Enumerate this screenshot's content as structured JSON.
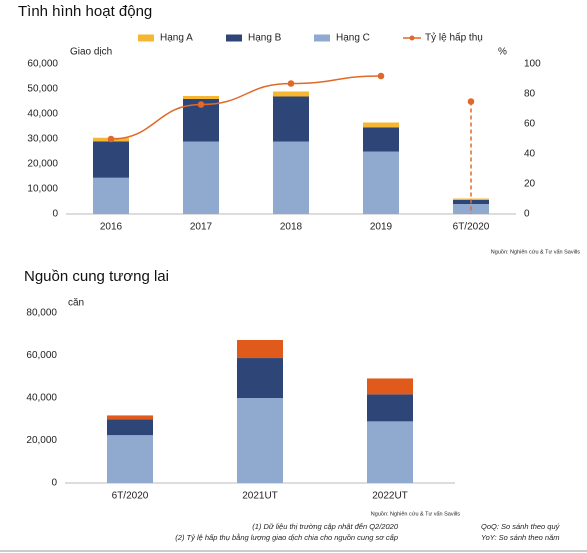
{
  "chart_data": [
    {
      "type": "bar",
      "stacked": true,
      "title": "Tình hình hoạt động",
      "ylabel": "Giao dịch",
      "y2label": "%",
      "categories": [
        "2016",
        "2017",
        "2018",
        "2019",
        "6T/2020"
      ],
      "series": [
        {
          "name": "Hạng A",
          "color": "#f5b731",
          "values": [
            1500,
            1200,
            2000,
            2000,
            600
          ]
        },
        {
          "name": "Hạng B",
          "color": "#2e4677",
          "values": [
            14500,
            17000,
            18000,
            9600,
            1600
          ]
        },
        {
          "name": "Hạng C",
          "color": "#8fa9cf",
          "values": [
            14500,
            29000,
            29000,
            25000,
            4000
          ]
        },
        {
          "name": "Tỷ lệ hấp thụ",
          "type": "line",
          "axis": "y2",
          "color": "#e0692a",
          "values": [
            50,
            73,
            87,
            92,
            75
          ],
          "isolated_last_point": true
        }
      ],
      "ylim": [
        0,
        60000
      ],
      "yticks": [
        0,
        {
          "value": 10000,
          "label": "10,000"
        },
        {
          "value": 20000,
          "label": "20,000"
        },
        {
          "value": 30000,
          "label": "30,000"
        },
        {
          "value": 40000,
          "label": "40,000"
        },
        {
          "value": 50000,
          "label": "50,000"
        },
        {
          "value": 60000,
          "label": "60,000"
        }
      ],
      "y2lim": [
        0,
        100
      ],
      "y2ticks": [
        0,
        20,
        40,
        60,
        80,
        100
      ],
      "grid": false,
      "legend": "top",
      "source": "Nguồn: Nghiên cứu & Tư vấn Savills"
    },
    {
      "type": "bar",
      "stacked": true,
      "title": "Nguồn cung tương lai",
      "ylabel": "căn",
      "categories": [
        "6T/2020",
        "2021UT",
        "2022UT"
      ],
      "series": [
        {
          "color": "#8fa9cf",
          "values": [
            22500,
            40000,
            29000
          ]
        },
        {
          "color": "#2e4677",
          "values": [
            7500,
            18800,
            12700
          ]
        },
        {
          "color": "#e05a1c",
          "values": [
            1800,
            8500,
            7500
          ]
        }
      ],
      "ylim": [
        0,
        80000
      ],
      "yticks": [
        0,
        {
          "value": 20000,
          "label": "20,000"
        },
        {
          "value": 40000,
          "label": "40,000"
        },
        {
          "value": 60000,
          "label": "60,000"
        },
        {
          "value": 80000,
          "label": "80,000"
        }
      ],
      "grid": false,
      "source": "Nguồn: Nghiên cứu & Tư vấn Savills"
    }
  ],
  "footnotes": [
    "(1) Dữ liệu thị trường cập nhật đến Q2/2020",
    "(2) Tỷ lệ hấp thụ bằng lượng giao dịch chia cho nguồn cung sơ cấp",
    "QoQ: So sánh theo quý",
    "YoY: So sánh theo năm"
  ]
}
